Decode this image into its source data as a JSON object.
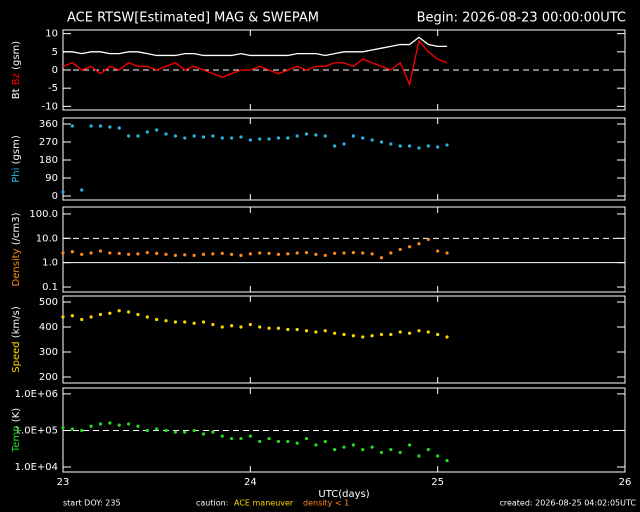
{
  "header": {
    "title": "ACE RTSW[Estimated] MAG & SWEPAM",
    "begin": "Begin: 2026-08-23 00:00:00UTC"
  },
  "footer": {
    "start": "start DOY: 235",
    "caution": "caution:",
    "maneuver": "ACE maneuver",
    "density_note": "density < 1",
    "created": "created: 2026-08-25 04:02:05UTC"
  },
  "chart_data": [
    {
      "type": "line",
      "ylabel_unit": "(gsm)",
      "x": [
        23,
        23.05,
        23.1,
        23.15,
        23.2,
        23.25,
        23.3,
        23.35,
        23.4,
        23.45,
        23.5,
        23.55,
        23.6,
        23.65,
        23.7,
        23.75,
        23.8,
        23.85,
        23.9,
        23.95,
        24,
        24.05,
        24.1,
        24.15,
        24.2,
        24.25,
        24.3,
        24.35,
        24.4,
        24.45,
        24.5,
        24.55,
        24.6,
        24.65,
        24.7,
        24.75,
        24.8,
        24.85,
        24.9,
        24.95,
        25,
        25.05
      ],
      "series": [
        {
          "name": "Bt",
          "color": "#ffffff",
          "values": [
            5,
            5,
            4.5,
            5,
            5,
            4.5,
            4.5,
            5,
            5,
            4.5,
            4,
            4,
            4,
            4.5,
            4.5,
            4,
            4,
            4,
            4,
            4.5,
            4,
            4,
            4,
            4,
            4,
            4.5,
            4.5,
            4.5,
            4,
            4.5,
            5,
            5,
            5,
            5.5,
            6,
            6.5,
            7,
            7,
            9,
            7,
            6.5,
            6.5
          ]
        },
        {
          "name": "Bz",
          "color": "#ff0000",
          "values": [
            1,
            2,
            0,
            1,
            -1,
            1,
            0,
            2,
            1,
            1,
            0,
            1,
            2,
            0,
            1,
            0,
            -1,
            -2,
            -1,
            0,
            0,
            1,
            0,
            -1,
            0,
            1,
            0,
            1,
            1,
            2,
            2,
            1,
            3,
            2,
            1,
            0,
            2,
            -4,
            8,
            5,
            3,
            2
          ]
        }
      ],
      "xlim": [
        23,
        26
      ],
      "xticks": [
        23,
        24,
        25,
        26
      ],
      "ylim": [
        -11,
        11
      ],
      "yticks": [
        10,
        5,
        0,
        -5,
        -10
      ],
      "hlines": [
        {
          "value": 0,
          "dashed": true
        }
      ]
    },
    {
      "type": "scatter",
      "ylabel_unit": "(gsm)",
      "x": [
        23,
        23.05,
        23.1,
        23.15,
        23.2,
        23.25,
        23.3,
        23.35,
        23.4,
        23.45,
        23.5,
        23.55,
        23.6,
        23.65,
        23.7,
        23.75,
        23.8,
        23.85,
        23.9,
        23.95,
        24,
        24.05,
        24.1,
        24.15,
        24.2,
        24.25,
        24.3,
        24.35,
        24.4,
        24.45,
        24.5,
        24.55,
        24.6,
        24.65,
        24.7,
        24.75,
        24.8,
        24.85,
        24.9,
        24.95,
        25,
        25.05
      ],
      "series": [
        {
          "name": "Phi",
          "color": "#29b6e6",
          "values": [
            20,
            350,
            30,
            350,
            350,
            345,
            340,
            300,
            300,
            320,
            330,
            310,
            300,
            290,
            300,
            295,
            300,
            290,
            290,
            295,
            280,
            285,
            285,
            290,
            290,
            300,
            310,
            305,
            300,
            250,
            260,
            300,
            290,
            280,
            270,
            260,
            250,
            250,
            240,
            250,
            245,
            255
          ]
        }
      ],
      "xlim": [
        23,
        26
      ],
      "xticks": [
        23,
        24,
        25,
        26
      ],
      "ylim": [
        -20,
        390
      ],
      "yticks": [
        360,
        270,
        180,
        90,
        0
      ]
    },
    {
      "type": "scatter",
      "ylabel_unit": "(/cm3)",
      "log_y": true,
      "x": [
        23,
        23.05,
        23.1,
        23.15,
        23.2,
        23.25,
        23.3,
        23.35,
        23.4,
        23.45,
        23.5,
        23.55,
        23.6,
        23.65,
        23.7,
        23.75,
        23.8,
        23.85,
        23.9,
        23.95,
        24,
        24.05,
        24.1,
        24.15,
        24.2,
        24.25,
        24.3,
        24.35,
        24.4,
        24.45,
        24.5,
        24.55,
        24.6,
        24.65,
        24.7,
        24.75,
        24.8,
        24.85,
        24.9,
        24.95,
        25,
        25.05
      ],
      "series": [
        {
          "name": "Density",
          "color": "#ff8c1a",
          "values": [
            2.5,
            2.8,
            2.2,
            2.5,
            3,
            2.5,
            2.4,
            2.2,
            2.3,
            2.6,
            2.4,
            2.2,
            2,
            2.1,
            2,
            2.2,
            2.3,
            2.4,
            2.2,
            2,
            2.3,
            2.5,
            2.4,
            2.2,
            2.3,
            2.5,
            2.6,
            2.2,
            2,
            2.4,
            2.5,
            2.6,
            2.5,
            2.3,
            1.6,
            2.5,
            3.5,
            4.5,
            6,
            9,
            3,
            2.5
          ]
        }
      ],
      "xlim": [
        23,
        26
      ],
      "xticks": [
        23,
        24,
        25,
        26
      ],
      "ylim": [
        0.0625,
        193
      ],
      "yticks": [
        {
          "value": 100,
          "label": "100.0"
        },
        {
          "value": 10,
          "label": "10.0"
        },
        {
          "value": 1,
          "label": "1.0"
        },
        0.1
      ],
      "hlines": [
        {
          "value": 10,
          "dashed": true
        },
        {
          "value": 1,
          "dashed": false
        }
      ]
    },
    {
      "type": "scatter",
      "ylabel_unit": "(km/s)",
      "x": [
        23,
        23.05,
        23.1,
        23.15,
        23.2,
        23.25,
        23.3,
        23.35,
        23.4,
        23.45,
        23.5,
        23.55,
        23.6,
        23.65,
        23.7,
        23.75,
        23.8,
        23.85,
        23.9,
        23.95,
        24,
        24.05,
        24.1,
        24.15,
        24.2,
        24.25,
        24.3,
        24.35,
        24.4,
        24.45,
        24.5,
        24.55,
        24.6,
        24.65,
        24.7,
        24.75,
        24.8,
        24.85,
        24.9,
        24.95,
        25,
        25.05
      ],
      "series": [
        {
          "name": "Speed",
          "color": "#ffd700",
          "values": [
            440,
            445,
            430,
            440,
            450,
            455,
            465,
            460,
            450,
            440,
            430,
            425,
            420,
            420,
            415,
            420,
            410,
            400,
            405,
            400,
            410,
            400,
            395,
            395,
            390,
            390,
            385,
            380,
            385,
            375,
            370,
            365,
            360,
            365,
            370,
            370,
            380,
            375,
            385,
            380,
            370,
            360
          ]
        }
      ],
      "xlim": [
        23,
        26
      ],
      "xticks": [
        23,
        24,
        25,
        26
      ],
      "ylim": [
        176,
        524
      ],
      "yticks": [
        500,
        400,
        300,
        200
      ]
    },
    {
      "type": "scatter",
      "ylabel_unit": "(K)",
      "log_y": true,
      "xlabel": "UTC(days)",
      "x": [
        23,
        23.05,
        23.1,
        23.15,
        23.2,
        23.25,
        23.3,
        23.35,
        23.4,
        23.45,
        23.5,
        23.55,
        23.6,
        23.65,
        23.7,
        23.75,
        23.8,
        23.85,
        23.9,
        23.95,
        24,
        24.05,
        24.1,
        24.15,
        24.2,
        24.25,
        24.3,
        24.35,
        24.4,
        24.45,
        24.5,
        24.55,
        24.6,
        24.65,
        24.7,
        24.75,
        24.8,
        24.85,
        24.9,
        24.95,
        25,
        25.05
      ],
      "series": [
        {
          "name": "Temp",
          "color": "#22dd22",
          "values": [
            120000,
            110000,
            100000,
            130000,
            150000,
            160000,
            140000,
            150000,
            130000,
            100000,
            110000,
            100000,
            90000,
            90000,
            100000,
            80000,
            90000,
            70000,
            60000,
            60000,
            70000,
            50000,
            60000,
            50000,
            50000,
            45000,
            60000,
            40000,
            50000,
            30000,
            35000,
            40000,
            30000,
            35000,
            25000,
            30000,
            25000,
            40000,
            20000,
            30000,
            20000,
            15000
          ]
        }
      ],
      "xlim": [
        23,
        26
      ],
      "xticks": [
        23,
        24,
        25,
        26
      ],
      "ylim": [
        7300,
        1450000
      ],
      "yticks": [
        {
          "value": 1000000,
          "label": "1.0E+06"
        },
        {
          "value": 100000,
          "label": "1.0E+05"
        },
        {
          "value": 10000,
          "label": "1.0E+04"
        }
      ],
      "hlines": [
        {
          "value": 100000,
          "dashed": true
        }
      ]
    }
  ]
}
